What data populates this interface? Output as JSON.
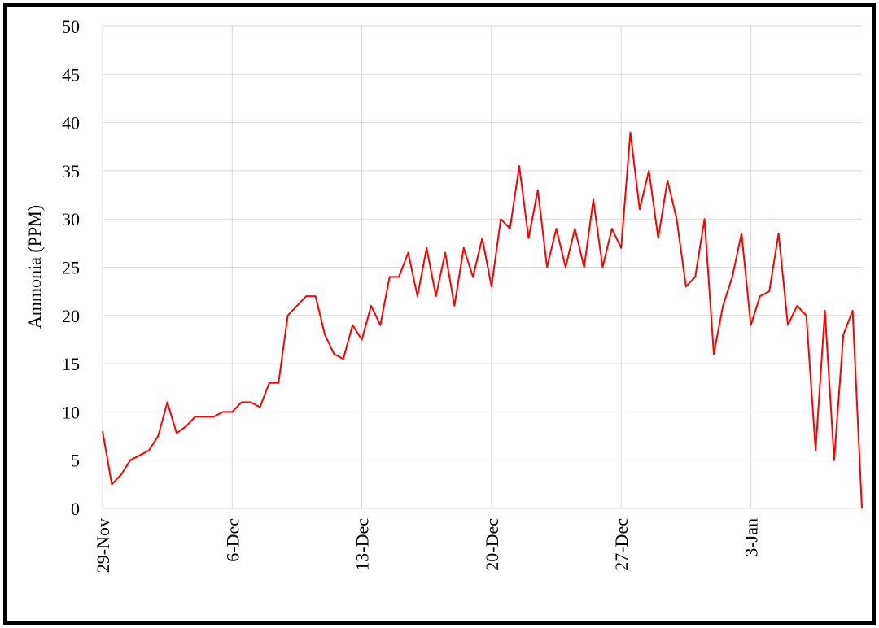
{
  "chart_data": {
    "type": "line",
    "ylabel": "Ammonia (PPM)",
    "categories": [
      "29-Nov",
      null,
      null,
      null,
      null,
      null,
      null,
      null,
      null,
      null,
      null,
      null,
      null,
      null,
      "6-Dec",
      null,
      null,
      null,
      null,
      null,
      null,
      null,
      null,
      null,
      null,
      null,
      null,
      null,
      "13-Dec",
      null,
      null,
      null,
      null,
      null,
      null,
      null,
      null,
      null,
      null,
      null,
      null,
      null,
      "20-Dec",
      null,
      null,
      null,
      null,
      null,
      null,
      null,
      null,
      null,
      null,
      null,
      null,
      null,
      "27-Dec",
      null,
      null,
      null,
      null,
      null,
      null,
      null,
      null,
      null,
      null,
      null,
      null,
      null,
      "3-Jan",
      null,
      null,
      null,
      null,
      null,
      null,
      null,
      null,
      null,
      null,
      null,
      null
    ],
    "series": [
      {
        "name": "Ammonia",
        "color": "#ff0000",
        "values": [
          8,
          2.5,
          3.5,
          5,
          5.5,
          6,
          7.5,
          11,
          7.8,
          8.5,
          9.5,
          9.5,
          9.5,
          10,
          10,
          11,
          11,
          10.5,
          13,
          13,
          20,
          21,
          22,
          22,
          18,
          16,
          15.5,
          19,
          17.5,
          21,
          19,
          24,
          24,
          26.5,
          22,
          27,
          22,
          26.5,
          21,
          27,
          24,
          28,
          23,
          30,
          29,
          35.5,
          28,
          33,
          25,
          29,
          25,
          29,
          25,
          32,
          25,
          29,
          27,
          39,
          31,
          35,
          28,
          34,
          30,
          23,
          24,
          30,
          16,
          21,
          24,
          28.5,
          19,
          22,
          22.5,
          28.5,
          19,
          21,
          20,
          6,
          20.5,
          5,
          18,
          20.5,
          0
        ]
      }
    ],
    "ylim": [
      0,
      50
    ],
    "yticks": [
      0,
      5,
      10,
      15,
      20,
      25,
      30,
      35,
      40,
      45,
      50
    ],
    "grid": true
  }
}
